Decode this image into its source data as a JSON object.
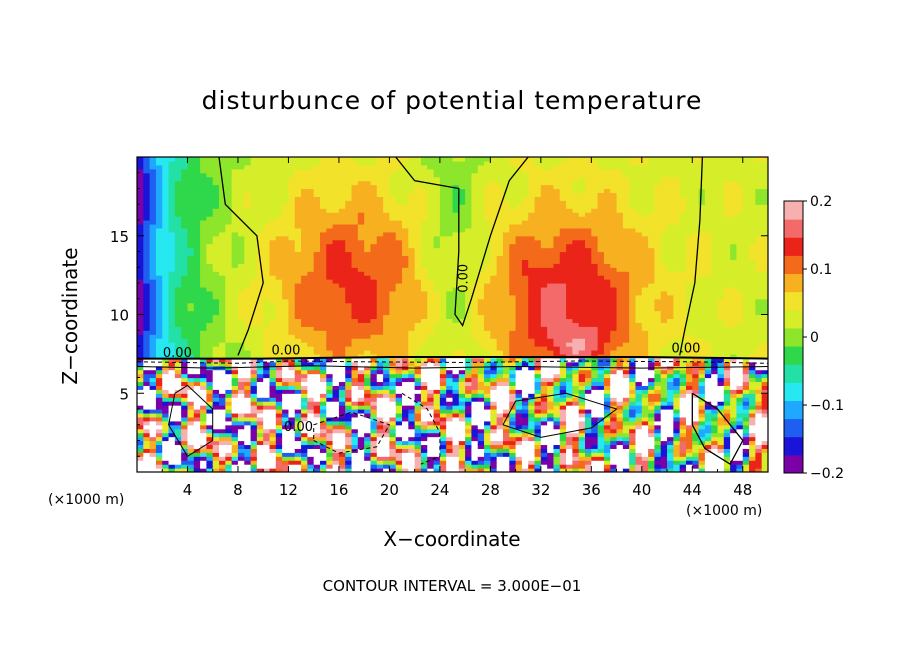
{
  "chart_data": {
    "type": "heatmap",
    "title": "disturbunce of potential temperature",
    "xlabel": "X−coordinate",
    "ylabel": "Z−coordinate",
    "x_unit_left": "(×1000 m)",
    "x_unit_right": "(×1000 m)",
    "xlim": [
      0,
      50
    ],
    "ylim": [
      0,
      20
    ],
    "x_ticks": [
      4,
      8,
      12,
      16,
      20,
      24,
      28,
      32,
      36,
      40,
      44,
      48
    ],
    "x_tick_labels": [
      "4",
      "8",
      "12",
      "16",
      "20",
      "24",
      "28",
      "32",
      "36",
      "40",
      "44",
      "48"
    ],
    "y_ticks": [
      5,
      10,
      15
    ],
    "y_tick_labels": [
      "5",
      "10",
      "15"
    ],
    "colorbar": {
      "range": [
        -0.2,
        0.2
      ],
      "ticks": [
        0.2,
        0.1,
        0,
        -0.1,
        -0.2
      ],
      "tick_labels": [
        "0.2",
        "0.1",
        "0",
        "−0.1",
        "−0.2"
      ],
      "colors": [
        "#7a00a8",
        "#1a14d8",
        "#1e5ef0",
        "#1fa8ff",
        "#27e8f0",
        "#22e0a6",
        "#2fd84a",
        "#8ee62c",
        "#d6ee2a",
        "#f2e22a",
        "#f7b020",
        "#f36b1a",
        "#ea2418",
        "#f46a6a",
        "#f7b0b0"
      ]
    },
    "contour_labels": [
      "0.00",
      "0.00",
      "0.00",
      "0.00",
      "0.00"
    ],
    "annotation": "CONTOUR INTERVAL = 3.000E−01"
  }
}
